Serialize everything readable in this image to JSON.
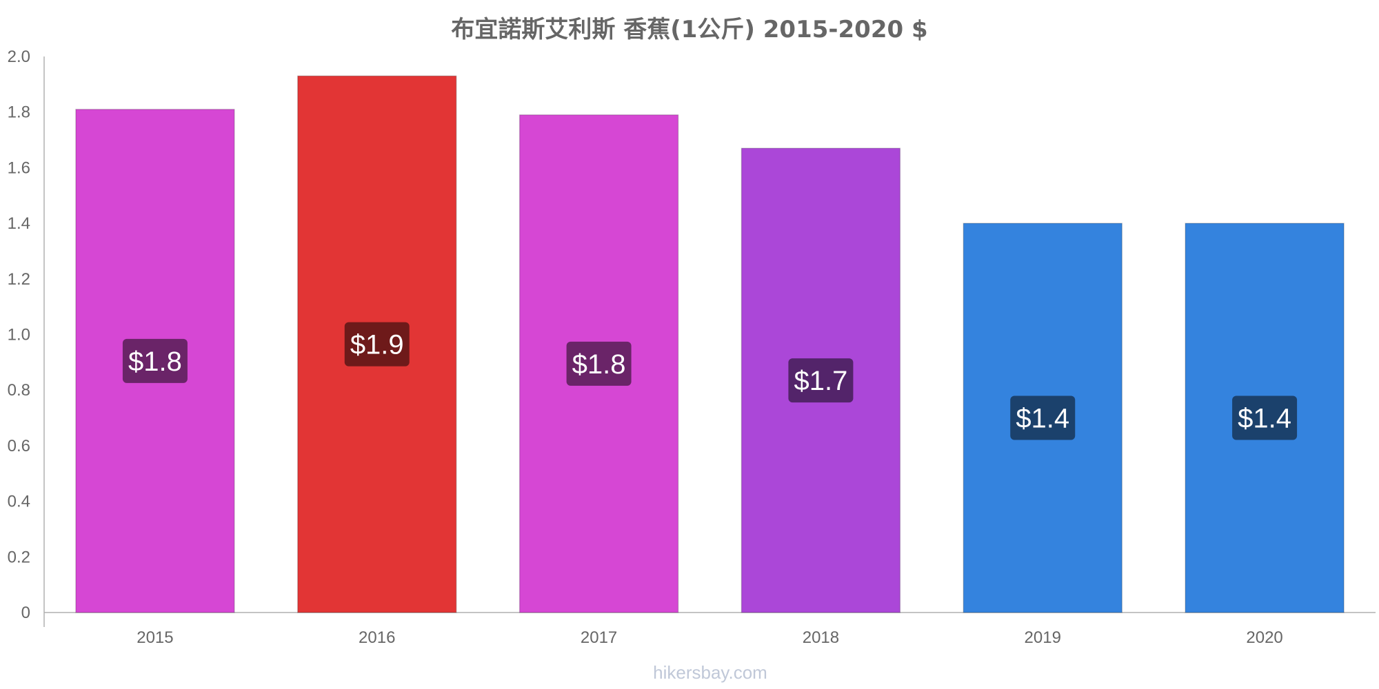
{
  "chart_data": {
    "type": "bar",
    "title": "布宜諾斯艾利斯 香蕉(1公斤) 2015-2020 $",
    "categories": [
      "2015",
      "2016",
      "2017",
      "2018",
      "2019",
      "2020"
    ],
    "values": [
      1.81,
      1.93,
      1.79,
      1.67,
      1.4,
      1.4
    ],
    "data_labels": [
      "$1.8",
      "$1.9",
      "$1.8",
      "$1.7",
      "$1.4",
      "$1.4"
    ],
    "bar_colors": [
      "#d647d4",
      "#e23535",
      "#d647d4",
      "#ab47d8",
      "#3483de",
      "#3483de"
    ],
    "label_bg_colors": [
      "#6a2468",
      "#6e1a1a",
      "#6a2468",
      "#53246a",
      "#1b416c",
      "#1b416c"
    ],
    "ylim": [
      0,
      2.0
    ],
    "yticks": [
      "0",
      "0.2",
      "0.4",
      "0.6",
      "0.8",
      "1.0",
      "1.2",
      "1.4",
      "1.6",
      "1.8",
      "2.0"
    ],
    "grid": false,
    "xlabel": "",
    "ylabel": ""
  },
  "footer": "hikersbay.com"
}
